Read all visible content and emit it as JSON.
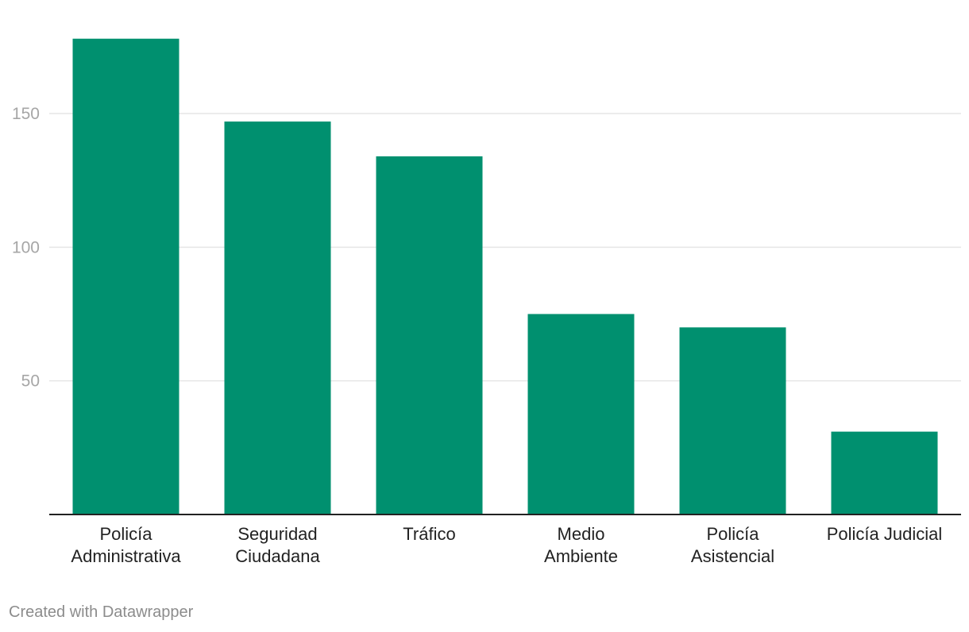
{
  "chart_data": {
    "type": "bar",
    "categories": [
      [
        "Policía",
        "Administrativa"
      ],
      [
        "Seguridad",
        "Ciudadana"
      ],
      [
        "Tráfico"
      ],
      [
        "Medio",
        "Ambiente"
      ],
      [
        "Policía",
        "Asistencial"
      ],
      [
        "Policía Judicial"
      ]
    ],
    "values": [
      178,
      147,
      134,
      75,
      70,
      31
    ],
    "yticks": [
      50,
      100,
      150
    ],
    "ylim": [
      0,
      180
    ],
    "grid": true,
    "bar_color": "#00906f"
  },
  "credit": "Created with Datawrapper"
}
